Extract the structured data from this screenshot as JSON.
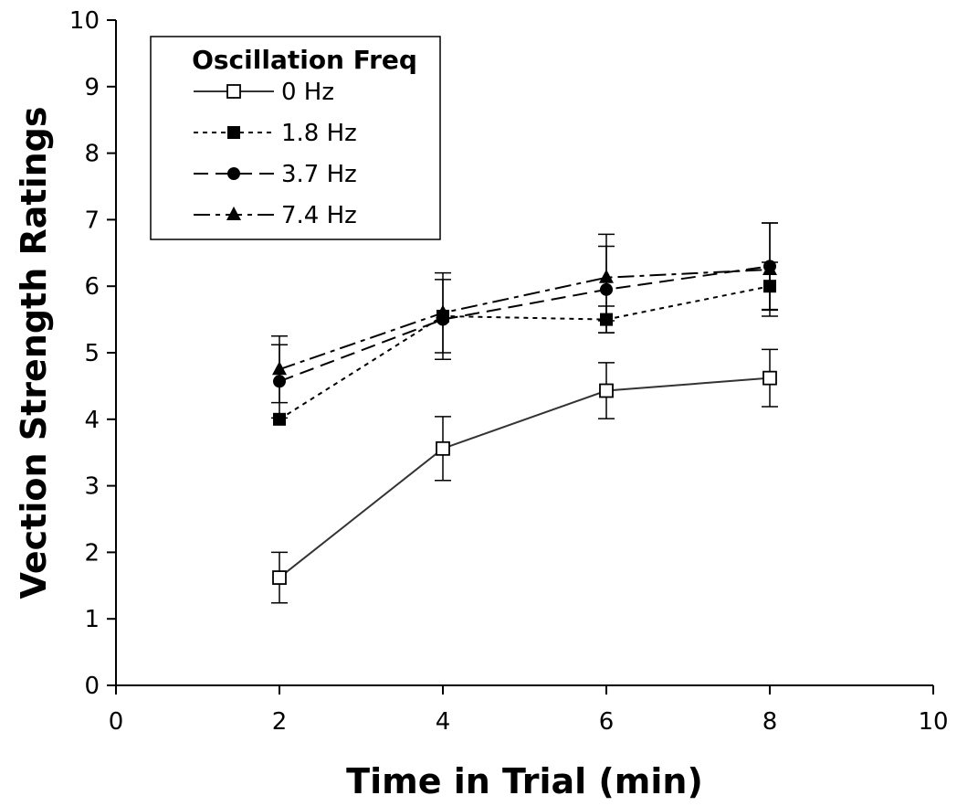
{
  "chart_data": {
    "type": "line",
    "title": "",
    "xlabel": "Time in Trial (min)",
    "ylabel": "Vection Strength Ratings",
    "xlim": [
      0,
      10
    ],
    "ylim": [
      0,
      10
    ],
    "xticks": [
      0,
      2,
      4,
      6,
      8,
      10
    ],
    "yticks": [
      0,
      1,
      2,
      3,
      4,
      5,
      6,
      7,
      8,
      9,
      10
    ],
    "grid": false,
    "legend": {
      "title": "Oscillation Freq",
      "placement": "top-left"
    },
    "x": [
      2,
      4,
      6,
      8
    ],
    "series": [
      {
        "name": "0 Hz",
        "values": [
          1.62,
          3.56,
          4.43,
          4.62
        ],
        "error": [
          0.38,
          0.48,
          0.42,
          0.43
        ],
        "marker": "open-square",
        "line": "solid",
        "color": "#333333"
      },
      {
        "name": "1.8 Hz",
        "values": [
          4.0,
          5.55,
          5.5,
          6.0
        ],
        "error": [
          0.0,
          0.0,
          0.2,
          0.36
        ],
        "marker": "filled-square",
        "line": "dotted",
        "color": "#000000"
      },
      {
        "name": "3.7 Hz",
        "values": [
          4.57,
          5.5,
          5.95,
          6.3
        ],
        "error": [
          0.55,
          0.6,
          0.65,
          0.65
        ],
        "marker": "filled-circle",
        "line": "dashed",
        "color": "#000000"
      },
      {
        "name": "7.4 Hz",
        "values": [
          4.75,
          5.6,
          6.13,
          6.25
        ],
        "error": [
          0.5,
          0.6,
          0.65,
          0.7
        ],
        "marker": "filled-triangle",
        "line": "dash-dot",
        "color": "#000000"
      }
    ]
  }
}
